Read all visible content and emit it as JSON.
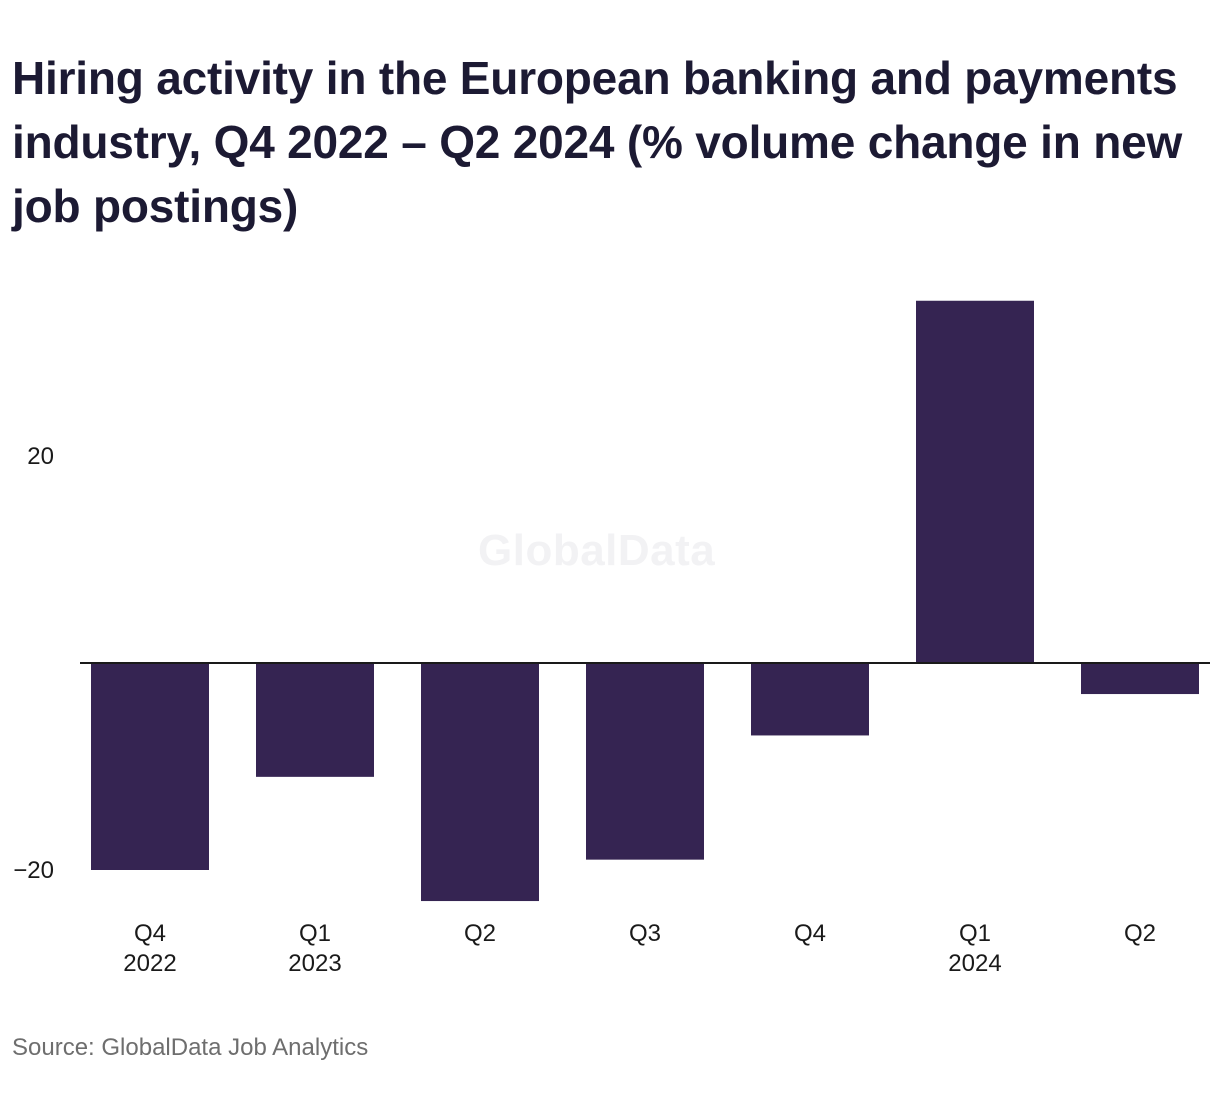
{
  "title": "Hiring activity in the European banking and payments industry, Q4 2022 – Q2 2024 (% volume change in new job postings)",
  "watermark": "GlobalData",
  "source": "Source: GlobalData Job Analytics",
  "chart_data": {
    "type": "bar",
    "title": "Hiring activity in the European banking and payments industry, Q4 2022 – Q2 2024 (% volume change in new job postings)",
    "xlabel": "",
    "ylabel": "",
    "categories": [
      [
        "Q4",
        "2022"
      ],
      [
        "Q1",
        "2023"
      ],
      [
        "Q2"
      ],
      [
        "Q3"
      ],
      [
        "Q4"
      ],
      [
        "Q1",
        "2024"
      ],
      [
        "Q2"
      ]
    ],
    "values": [
      -20,
      -11,
      -23,
      -19,
      -7,
      35,
      -3
    ],
    "yticks": [
      20,
      -20
    ],
    "ytick_labels": [
      "20",
      "−20"
    ],
    "ylim": [
      -23,
      35
    ],
    "bar_color": "#352452",
    "axis_color": "#1a1a1a",
    "grid": false,
    "legend": "none"
  }
}
